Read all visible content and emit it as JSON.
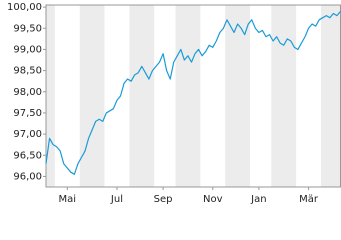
{
  "chart_data": {
    "type": "line",
    "categories": [
      null,
      null,
      null,
      null,
      null,
      null,
      "Mai",
      null,
      null,
      null,
      null,
      null,
      null,
      null,
      null,
      null,
      null,
      null,
      null,
      null,
      "Jul",
      null,
      null,
      null,
      null,
      null,
      null,
      null,
      null,
      null,
      null,
      null,
      null,
      "Sep",
      null,
      null,
      null,
      null,
      null,
      null,
      null,
      null,
      null,
      null,
      null,
      null,
      null,
      "Nov",
      null,
      null,
      null,
      null,
      null,
      null,
      null,
      null,
      null,
      null,
      null,
      null,
      "Jan",
      null,
      null,
      null,
      null,
      null,
      null,
      null,
      null,
      null,
      null,
      null,
      null,
      null,
      "Mär",
      null,
      null,
      null,
      null,
      null,
      null,
      null,
      null,
      null
    ],
    "series": [
      {
        "color": "#1a9bd7",
        "values": [
          96.3,
          96.9,
          96.75,
          96.7,
          96.6,
          96.3,
          96.2,
          96.1,
          96.05,
          96.3,
          96.45,
          96.6,
          96.9,
          97.1,
          97.3,
          97.35,
          97.3,
          97.5,
          97.55,
          97.6,
          97.8,
          97.9,
          98.2,
          98.3,
          98.25,
          98.4,
          98.45,
          98.6,
          98.45,
          98.3,
          98.5,
          98.6,
          98.7,
          98.9,
          98.5,
          98.3,
          98.7,
          98.85,
          99.0,
          98.75,
          98.85,
          98.7,
          98.9,
          99.0,
          98.85,
          98.95,
          99.1,
          99.05,
          99.2,
          99.4,
          99.5,
          99.7,
          99.55,
          99.4,
          99.6,
          99.5,
          99.35,
          99.6,
          99.7,
          99.5,
          99.4,
          99.45,
          99.3,
          99.35,
          99.2,
          99.3,
          99.15,
          99.1,
          99.25,
          99.2,
          99.05,
          99.0,
          99.15,
          99.3,
          99.5,
          99.6,
          99.55,
          99.7,
          99.75,
          99.8,
          99.75,
          99.85,
          99.8,
          99.9
        ]
      }
    ],
    "ylim": [
      95.75,
      100.05
    ],
    "yticks": [
      {
        "value": 96,
        "label": "96,00"
      },
      {
        "value": 96.5,
        "label": "96,50"
      },
      {
        "value": 97,
        "label": "97,00"
      },
      {
        "value": 97.5,
        "label": "97,50"
      },
      {
        "value": 98,
        "label": "98,00"
      },
      {
        "value": 98.5,
        "label": "98,50"
      },
      {
        "value": 99,
        "label": "99,00"
      },
      {
        "value": 99.5,
        "label": "99,50"
      },
      {
        "value": 100,
        "label": "100,00"
      }
    ]
  }
}
